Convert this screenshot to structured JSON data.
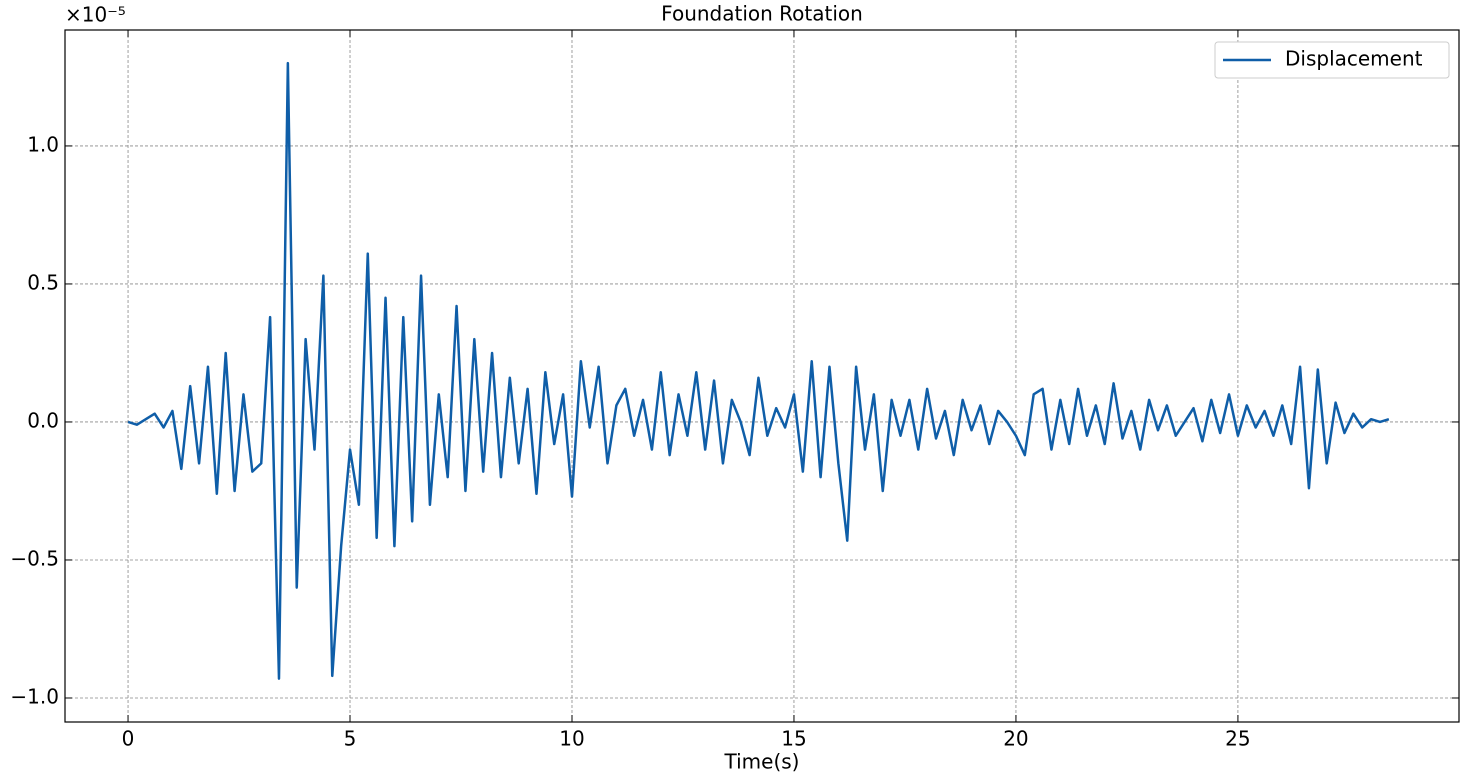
{
  "chart_data": {
    "type": "line",
    "title": "Foundation Rotation",
    "xlabel": "Time(s)",
    "y_scale_label": "×10⁻⁵",
    "xlim": [
      -1.42,
      29.98
    ],
    "ylim": [
      -1.087,
      1.42
    ],
    "xticks": [
      0,
      5,
      10,
      15,
      20,
      25
    ],
    "yticks": [
      {
        "value": -1,
        "label": "−1.0"
      },
      {
        "value": -0.5,
        "label": "−0.5"
      },
      {
        "value": 0,
        "label": "0.0"
      },
      {
        "value": 0.5,
        "label": "0.5"
      },
      {
        "value": 1,
        "label": "1.0"
      }
    ],
    "grid": true,
    "legend": "upper right",
    "x": [
      0,
      0.2,
      0.4,
      0.6,
      0.8,
      1,
      1.2,
      1.4,
      1.6,
      1.8,
      2,
      2.2,
      2.4,
      2.6,
      2.8,
      3,
      3.2,
      3.4,
      3.6,
      3.8,
      4,
      4.2,
      4.4,
      4.6,
      4.8,
      5,
      5.2,
      5.4,
      5.6,
      5.8,
      6,
      6.2,
      6.4,
      6.6,
      6.8,
      7,
      7.2,
      7.4,
      7.6,
      7.8,
      8,
      8.2,
      8.4,
      8.6,
      8.8,
      9,
      9.2,
      9.4,
      9.6,
      9.8,
      10,
      10.2,
      10.4,
      10.6,
      10.8,
      11,
      11.2,
      11.4,
      11.6,
      11.8,
      12,
      12.2,
      12.4,
      12.6,
      12.8,
      13,
      13.2,
      13.4,
      13.6,
      13.8,
      14,
      14.2,
      14.4,
      14.6,
      14.8,
      15,
      15.2,
      15.4,
      15.6,
      15.8,
      16,
      16.2,
      16.4,
      16.6,
      16.8,
      17,
      17.2,
      17.4,
      17.6,
      17.8,
      18,
      18.2,
      18.4,
      18.6,
      18.8,
      19,
      19.2,
      19.4,
      19.6,
      19.8,
      20,
      20.2,
      20.4,
      20.6,
      20.8,
      21,
      21.2,
      21.4,
      21.6,
      21.8,
      22,
      22.2,
      22.4,
      22.6,
      22.8,
      23,
      23.2,
      23.4,
      23.6,
      23.8,
      24,
      24.2,
      24.4,
      24.6,
      24.8,
      25,
      25.2,
      25.4,
      25.6,
      25.8,
      26,
      26.2,
      26.4,
      26.6,
      26.8,
      27,
      27.2,
      27.4,
      27.6,
      27.8,
      28,
      28.2,
      28.4
    ],
    "series": [
      {
        "name": "Displacement",
        "color": "#0f5ea8",
        "values": [
          0,
          -0.01,
          0.01,
          0.03,
          -0.02,
          0.04,
          -0.17,
          0.13,
          -0.15,
          0.2,
          -0.26,
          0.25,
          -0.25,
          0.1,
          -0.18,
          -0.15,
          0.38,
          -0.93,
          1.3,
          -0.6,
          0.3,
          -0.1,
          0.53,
          -0.92,
          -0.45,
          -0.1,
          -0.3,
          0.61,
          -0.42,
          0.45,
          -0.45,
          0.38,
          -0.36,
          0.53,
          -0.3,
          0.1,
          -0.2,
          0.42,
          -0.25,
          0.3,
          -0.18,
          0.25,
          -0.2,
          0.16,
          -0.15,
          0.12,
          -0.26,
          0.18,
          -0.08,
          0.1,
          -0.27,
          0.22,
          -0.02,
          0.2,
          -0.15,
          0.06,
          0.12,
          -0.05,
          0.08,
          -0.1,
          0.18,
          -0.12,
          0.1,
          -0.05,
          0.18,
          -0.1,
          0.15,
          -0.15,
          0.08,
          0,
          -0.12,
          0.16,
          -0.05,
          0.05,
          -0.02,
          0.1,
          -0.18,
          0.22,
          -0.2,
          0.2,
          -0.15,
          -0.43,
          0.2,
          -0.1,
          0.1,
          -0.25,
          0.08,
          -0.05,
          0.08,
          -0.1,
          0.12,
          -0.06,
          0.04,
          -0.12,
          0.08,
          -0.03,
          0.06,
          -0.08,
          0.04,
          0,
          -0.05,
          -0.12,
          0.1,
          0.12,
          -0.1,
          0.08,
          -0.08,
          0.12,
          -0.05,
          0.06,
          -0.08,
          0.14,
          -0.06,
          0.04,
          -0.1,
          0.08,
          -0.03,
          0.06,
          -0.05,
          0,
          0.05,
          -0.07,
          0.08,
          -0.04,
          0.1,
          -0.05,
          0.06,
          -0.02,
          0.04,
          -0.05,
          0.06,
          -0.08,
          0.2,
          -0.24,
          0.19,
          -0.15,
          0.07,
          -0.04,
          0.03,
          -0.02,
          0.01,
          0,
          0.01
        ]
      }
    ]
  }
}
